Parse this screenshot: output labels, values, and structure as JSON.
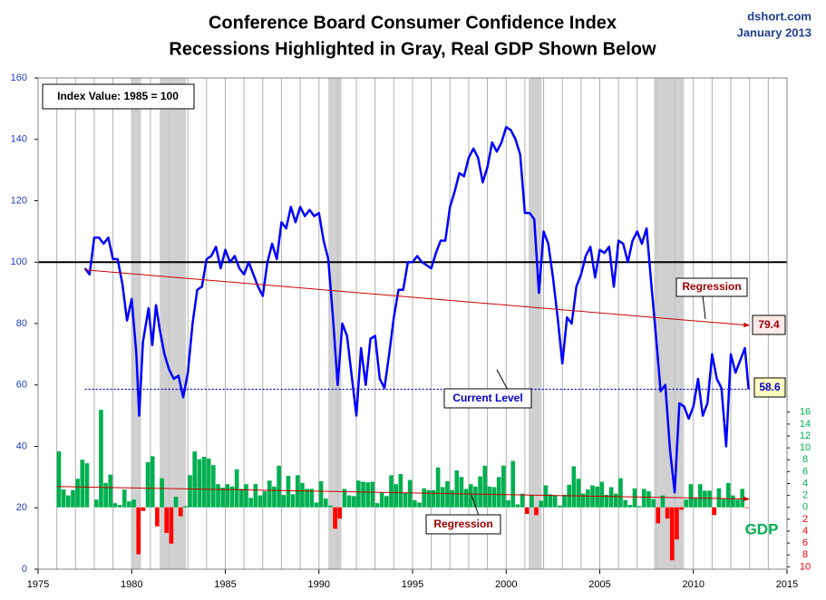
{
  "chart_data": {
    "type": "line",
    "title": "Conference Board Consumer Confidence Index",
    "subtitle": "Recessions Highlighted in Gray, Real GDP Shown Below",
    "source": "dshort.com",
    "date": "January 2013",
    "xlim": [
      1975,
      2015
    ],
    "xticks": [
      1975,
      1980,
      1985,
      1990,
      1995,
      2000,
      2005,
      2010,
      2015
    ],
    "x_minor_grid": 1,
    "ylim": [
      0,
      160
    ],
    "yticks": [
      0,
      20,
      40,
      60,
      80,
      100,
      120,
      140,
      160
    ],
    "y2lim": [
      -10.4,
      72.2
    ],
    "y2ticks": [
      {
        "value": -10,
        "label": "10"
      },
      {
        "value": -8,
        "label": "8"
      },
      {
        "value": -6,
        "label": "6"
      },
      {
        "value": -4,
        "label": "4"
      },
      {
        "value": -2,
        "label": "2"
      },
      0,
      2,
      4,
      6,
      8,
      10,
      12,
      14,
      16
    ],
    "reference_line": 100,
    "recessions": [
      [
        1980.0,
        1980.5
      ],
      [
        1981.5,
        1982.9
      ],
      [
        1990.5,
        1991.2
      ],
      [
        2001.2,
        2001.9
      ],
      [
        2007.9,
        2009.5
      ]
    ],
    "series": [
      {
        "color": "#0000ff",
        "x": [
          1977.5,
          1977.75,
          1978,
          1978.25,
          1978.5,
          1978.75,
          1979,
          1979.25,
          1979.5,
          1979.75,
          1980,
          1980.25,
          1980.4,
          1980.6,
          1980.9,
          1981.1,
          1981.3,
          1981.5,
          1981.75,
          1982,
          1982.25,
          1982.5,
          1982.75,
          1983,
          1983.25,
          1983.5,
          1983.75,
          1984,
          1984.25,
          1984.5,
          1984.75,
          1985,
          1985.25,
          1985.5,
          1985.75,
          1986,
          1986.25,
          1986.5,
          1986.75,
          1987,
          1987.25,
          1987.5,
          1987.75,
          1988,
          1988.25,
          1988.5,
          1988.75,
          1989,
          1989.25,
          1989.5,
          1989.75,
          1990,
          1990.25,
          1990.5,
          1990.75,
          1991,
          1991.25,
          1991.5,
          1991.75,
          1992,
          1992.25,
          1992.5,
          1992.75,
          1993,
          1993.25,
          1993.5,
          1993.75,
          1994,
          1994.25,
          1994.5,
          1994.75,
          1995,
          1995.25,
          1995.5,
          1995.75,
          1996,
          1996.25,
          1996.5,
          1996.75,
          1997,
          1997.25,
          1997.5,
          1997.75,
          1998,
          1998.25,
          1998.5,
          1998.75,
          1999,
          1999.25,
          1999.5,
          1999.75,
          2000,
          2000.25,
          2000.5,
          2000.75,
          2001,
          2001.25,
          2001.5,
          2001.75,
          2002,
          2002.25,
          2002.5,
          2002.75,
          2003,
          2003.25,
          2003.5,
          2003.75,
          2004,
          2004.25,
          2004.5,
          2004.75,
          2005,
          2005.25,
          2005.5,
          2005.75,
          2006,
          2006.25,
          2006.5,
          2006.75,
          2007,
          2007.25,
          2007.5,
          2007.75,
          2008,
          2008.25,
          2008.5,
          2008.75,
          2009,
          2009.25,
          2009.5,
          2009.75,
          2010,
          2010.25,
          2010.5,
          2010.75,
          2011,
          2011.25,
          2011.5,
          2011.75,
          2012,
          2012.25,
          2012.5,
          2012.75,
          2012.95
        ],
        "values": [
          98,
          96,
          108,
          108,
          106,
          108,
          101,
          101,
          93,
          81,
          88,
          70,
          50,
          74,
          85,
          73,
          86,
          78,
          70,
          65,
          62,
          63,
          56,
          64,
          80,
          91,
          92,
          101,
          102,
          105,
          98,
          104,
          100,
          102,
          98,
          96,
          100,
          96,
          92,
          89,
          100,
          106,
          101,
          113,
          111,
          118,
          113,
          118,
          115,
          117,
          115,
          116,
          107,
          101,
          82,
          60,
          80,
          76,
          63,
          50,
          72,
          60,
          75,
          76,
          62,
          59,
          70,
          82,
          91,
          91,
          100,
          100,
          102,
          100,
          99,
          98,
          103,
          107,
          107,
          118,
          123,
          129,
          128,
          134,
          137,
          134,
          126,
          131,
          139,
          136,
          139,
          144,
          143,
          140,
          135,
          116,
          116,
          114,
          90,
          110,
          106,
          95,
          82,
          67,
          82,
          80,
          92,
          96,
          102,
          105,
          95,
          104,
          103,
          105,
          92,
          107,
          106,
          100,
          107,
          110,
          106,
          111,
          93,
          76,
          58,
          60,
          39,
          25,
          54,
          53,
          49,
          53,
          62,
          50,
          54,
          70,
          62,
          59,
          40,
          70,
          64,
          68,
          72,
          58.6
        ]
      },
      {
        "type": "bar",
        "axis": "y2",
        "color": "#00b050",
        "negative_color": "#ff0000",
        "x": [
          1976,
          1976.25,
          1976.5,
          1976.75,
          1977,
          1977.25,
          1977.5,
          1977.75,
          1978,
          1978.25,
          1978.5,
          1978.75,
          1979,
          1979.25,
          1979.5,
          1979.75,
          1980,
          1980.25,
          1980.5,
          1980.75,
          1981,
          1981.25,
          1981.5,
          1981.75,
          1982,
          1982.25,
          1982.5,
          1982.75,
          1983,
          1983.25,
          1983.5,
          1983.75,
          1984,
          1984.25,
          1984.5,
          1984.75,
          1985,
          1985.25,
          1985.5,
          1985.75,
          1986,
          1986.25,
          1986.5,
          1986.75,
          1987,
          1987.25,
          1987.5,
          1987.75,
          1988,
          1988.25,
          1988.5,
          1988.75,
          1989,
          1989.25,
          1989.5,
          1989.75,
          1990,
          1990.25,
          1990.5,
          1990.75,
          1991,
          1991.25,
          1991.5,
          1991.75,
          1992,
          1992.25,
          1992.5,
          1992.75,
          1993,
          1993.25,
          1993.5,
          1993.75,
          1994,
          1994.25,
          1994.5,
          1994.75,
          1995,
          1995.25,
          1995.5,
          1995.75,
          1996,
          1996.25,
          1996.5,
          1996.75,
          1997,
          1997.25,
          1997.5,
          1997.75,
          1998,
          1998.25,
          1998.5,
          1998.75,
          1999,
          1999.25,
          1999.5,
          1999.75,
          2000,
          2000.25,
          2000.5,
          2000.75,
          2001,
          2001.25,
          2001.5,
          2001.75,
          2002,
          2002.25,
          2002.5,
          2002.75,
          2003,
          2003.25,
          2003.5,
          2003.75,
          2004,
          2004.25,
          2004.5,
          2004.75,
          2005,
          2005.25,
          2005.5,
          2005.75,
          2006,
          2006.25,
          2006.5,
          2006.75,
          2007,
          2007.25,
          2007.5,
          2007.75,
          2008,
          2008.25,
          2008.5,
          2008.75,
          2009,
          2009.25,
          2009.5,
          2009.75,
          2010,
          2010.25,
          2010.5,
          2010.75,
          2011,
          2011.25,
          2011.5,
          2011.75,
          2012,
          2012.25,
          2012.5,
          2012.75
        ],
        "values": [
          9.4,
          3.0,
          2.0,
          2.9,
          4.8,
          8.0,
          7.4,
          0.0,
          1.3,
          16.4,
          4.1,
          5.5,
          0.7,
          0.4,
          3.0,
          1.0,
          1.3,
          -7.9,
          -0.6,
          7.6,
          8.6,
          -3.2,
          4.9,
          -4.3,
          -6.1,
          1.8,
          -1.5,
          0.2,
          5.4,
          9.4,
          8.1,
          8.5,
          8.2,
          7.1,
          3.9,
          3.3,
          3.9,
          3.5,
          6.4,
          3.1,
          3.9,
          1.6,
          3.9,
          2.0,
          2.7,
          4.5,
          3.5,
          7.0,
          2.1,
          5.3,
          2.2,
          5.4,
          4.1,
          3.1,
          3.1,
          0.8,
          4.4,
          1.5,
          0.3,
          -3.6,
          -1.9,
          3.1,
          2.0,
          1.9,
          4.5,
          4.3,
          4.2,
          4.3,
          0.7,
          2.5,
          1.9,
          5.4,
          3.9,
          5.6,
          2.4,
          4.6,
          1.2,
          0.8,
          3.2,
          2.9,
          2.9,
          6.7,
          3.4,
          4.4,
          2.9,
          6.2,
          5.1,
          3.1,
          3.9,
          3.5,
          5.2,
          7.0,
          3.5,
          3.4,
          5.1,
          7.0,
          1.2,
          7.8,
          0.5,
          2.3,
          -1.1,
          2.1,
          -1.3,
          1.1,
          3.7,
          2.2,
          2.0,
          0.3,
          2.1,
          3.8,
          6.9,
          4.8,
          2.3,
          3.0,
          3.7,
          3.5,
          4.3,
          2.1,
          3.4,
          2.3,
          4.9,
          1.2,
          0.4,
          3.2,
          0.2,
          3.1,
          2.7,
          1.4,
          -2.7,
          2.0,
          -1.9,
          -8.9,
          -5.4,
          -0.4,
          1.3,
          3.9,
          1.6,
          3.9,
          2.8,
          2.8,
          -1.3,
          3.2,
          1.4,
          4.1,
          2.0,
          1.3,
          3.1,
          -0.1
        ]
      }
    ],
    "regressions": [
      {
        "color": "#cc0000",
        "x": [
          1977.5,
          2013
        ],
        "values": [
          97.5,
          79.4
        ]
      },
      {
        "color": "#cc0000",
        "axis": "y2",
        "x": [
          1976,
          2013
        ],
        "values": [
          3.5,
          1.4
        ]
      }
    ],
    "current_level": {
      "color": "#0000cc",
      "x": [
        1977.5,
        2013
      ],
      "value": 58.6
    },
    "annotations": {
      "index_note": "Index Value: 1985  = 100",
      "cci_regression": "Regression",
      "current_level": "Current Level",
      "gdp_regression": "Regression",
      "gdp": "GDP"
    }
  }
}
